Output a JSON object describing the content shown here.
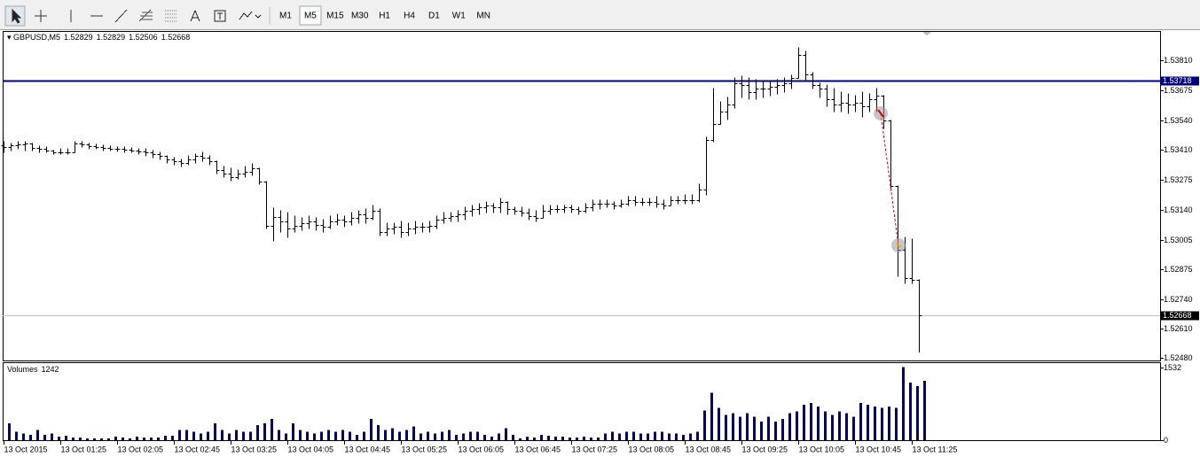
{
  "toolbar": {
    "timeframes": [
      "M1",
      "M5",
      "M15",
      "M30",
      "H1",
      "H4",
      "D1",
      "W1",
      "MN"
    ],
    "active": "M5"
  },
  "chart_data": [
    {
      "type": "ohlc",
      "title": "GBPUSD,M5",
      "color": "#000000",
      "open": [
        1.5343,
        1.53422,
        1.5343,
        1.53434,
        1.53438,
        1.53418,
        1.53414,
        1.53406,
        1.53398,
        1.53398,
        1.53398,
        1.53438,
        1.53434,
        1.53426,
        1.53422,
        1.53418,
        1.53414,
        1.53414,
        1.5341,
        1.53406,
        1.53402,
        1.53398,
        1.5339,
        1.53382,
        1.53367,
        1.53359,
        1.53351,
        1.53367,
        1.53382,
        1.53374,
        1.53359,
        1.53319,
        1.53303,
        1.53287,
        1.53303,
        1.53311,
        1.53327,
        1.53267,
        1.5307,
        1.53109,
        1.53089,
        1.53058,
        1.5307,
        1.53081,
        1.53089,
        1.53073,
        1.53066,
        1.53089,
        1.53097,
        1.53089,
        1.53105,
        1.53121,
        1.53105,
        1.53137,
        1.53042,
        1.53058,
        1.53066,
        1.53042,
        1.53058,
        1.53066,
        1.53066,
        1.5307,
        1.53097,
        1.53105,
        1.53113,
        1.53121,
        1.53137,
        1.53145,
        1.53153,
        1.53161,
        1.53153,
        1.53176,
        1.53145,
        1.53137,
        1.53129,
        1.53113,
        1.53105,
        1.53137,
        1.53145,
        1.53145,
        1.53153,
        1.53145,
        1.53137,
        1.53153,
        1.53168,
        1.53168,
        1.53168,
        1.53161,
        1.53168,
        1.53184,
        1.53176,
        1.53176,
        1.53176,
        1.53168,
        1.53161,
        1.53184,
        1.53184,
        1.53184,
        1.53184,
        1.53232,
        1.53454,
        1.53525,
        1.5358,
        1.53612,
        1.53707,
        1.53699,
        1.53667,
        1.53683,
        1.53683,
        1.53691,
        1.53699,
        1.53707,
        1.53731,
        1.53834,
        1.53747,
        1.53699,
        1.53683,
        1.53636,
        1.53612,
        1.5362,
        1.53612,
        1.5362,
        1.53604,
        1.53636,
        1.53652,
        1.53541,
        1.53248,
        1.52963,
        1.52836,
        1.52829
      ],
      "high": [
        1.53446,
        1.53438,
        1.53446,
        1.53446,
        1.53438,
        1.53426,
        1.53422,
        1.53406,
        1.53414,
        1.53414,
        1.53446,
        1.53446,
        1.53438,
        1.53434,
        1.5343,
        1.53426,
        1.53422,
        1.53422,
        1.53418,
        1.53414,
        1.53414,
        1.53406,
        1.53398,
        1.53382,
        1.53374,
        1.53367,
        1.53382,
        1.5339,
        1.53398,
        1.53382,
        1.53359,
        1.53335,
        1.53327,
        1.53319,
        1.53335,
        1.53347,
        1.53327,
        1.53267,
        1.53149,
        1.53137,
        1.53129,
        1.53113,
        1.53105,
        1.53113,
        1.53105,
        1.53097,
        1.53113,
        1.53121,
        1.53113,
        1.53129,
        1.53137,
        1.53145,
        1.53161,
        1.53145,
        1.53081,
        1.53081,
        1.53089,
        1.53081,
        1.53089,
        1.53081,
        1.53089,
        1.53113,
        1.53129,
        1.53129,
        1.53137,
        1.53153,
        1.53161,
        1.53168,
        1.53176,
        1.53168,
        1.53192,
        1.53176,
        1.53153,
        1.53153,
        1.53145,
        1.53137,
        1.53161,
        1.53161,
        1.53161,
        1.53161,
        1.53161,
        1.53153,
        1.53168,
        1.53184,
        1.53184,
        1.53184,
        1.53176,
        1.53184,
        1.532,
        1.532,
        1.53192,
        1.53192,
        1.532,
        1.53184,
        1.532,
        1.532,
        1.53208,
        1.53208,
        1.53256,
        1.53466,
        1.53683,
        1.53624,
        1.53644,
        1.53731,
        1.53739,
        1.53731,
        1.53723,
        1.53715,
        1.53715,
        1.53723,
        1.53731,
        1.53743,
        1.53865,
        1.5385,
        1.53755,
        1.53707,
        1.53699,
        1.53683,
        1.53667,
        1.5366,
        1.53652,
        1.53667,
        1.5366,
        1.53683,
        1.53652,
        1.53541,
        1.53248,
        1.53018,
        1.5301,
        1.52829
      ],
      "low": [
        1.53398,
        1.53406,
        1.53414,
        1.53406,
        1.53406,
        1.53398,
        1.53398,
        1.5339,
        1.5339,
        1.5339,
        1.53398,
        1.53422,
        1.53414,
        1.53414,
        1.53406,
        1.53406,
        1.53402,
        1.53398,
        1.53398,
        1.5339,
        1.53382,
        1.53374,
        1.53367,
        1.53351,
        1.53343,
        1.53335,
        1.53343,
        1.53351,
        1.53359,
        1.53343,
        1.53303,
        1.53287,
        1.53271,
        1.53279,
        1.53287,
        1.53295,
        1.53256,
        1.53058,
        1.53002,
        1.53042,
        1.53018,
        1.53042,
        1.5305,
        1.53058,
        1.5305,
        1.53042,
        1.53058,
        1.53073,
        1.53066,
        1.53073,
        1.53081,
        1.53081,
        1.53097,
        1.53026,
        1.53026,
        1.53034,
        1.53018,
        1.53026,
        1.53034,
        1.53042,
        1.53042,
        1.53058,
        1.53081,
        1.53089,
        1.53089,
        1.53097,
        1.53113,
        1.53121,
        1.53129,
        1.53129,
        1.53129,
        1.53121,
        1.53121,
        1.53113,
        1.53097,
        1.53089,
        1.53105,
        1.53121,
        1.53129,
        1.53129,
        1.53129,
        1.53121,
        1.53129,
        1.53137,
        1.53145,
        1.53153,
        1.53145,
        1.53153,
        1.53161,
        1.53161,
        1.53161,
        1.53161,
        1.53153,
        1.53145,
        1.53161,
        1.53168,
        1.53168,
        1.53168,
        1.53176,
        1.53208,
        1.53446,
        1.53525,
        1.53545,
        1.53596,
        1.53644,
        1.53636,
        1.53636,
        1.53644,
        1.53652,
        1.5366,
        1.53667,
        1.53683,
        1.53731,
        1.53723,
        1.53683,
        1.53644,
        1.53604,
        1.5358,
        1.5358,
        1.53572,
        1.5358,
        1.53557,
        1.5358,
        1.5358,
        1.53505,
        1.53228,
        1.52844,
        1.52812,
        1.52812,
        1.52506
      ],
      "close": [
        1.53422,
        1.5343,
        1.53434,
        1.53438,
        1.53418,
        1.53414,
        1.53406,
        1.53398,
        1.53398,
        1.53398,
        1.53438,
        1.53434,
        1.53426,
        1.53422,
        1.53418,
        1.53414,
        1.53414,
        1.5341,
        1.53406,
        1.53402,
        1.53398,
        1.5339,
        1.53382,
        1.53367,
        1.53359,
        1.53351,
        1.53367,
        1.53382,
        1.53374,
        1.53359,
        1.53319,
        1.53303,
        1.53287,
        1.53303,
        1.53311,
        1.53327,
        1.53267,
        1.5307,
        1.53109,
        1.53089,
        1.53058,
        1.5307,
        1.53081,
        1.53089,
        1.53073,
        1.53066,
        1.53089,
        1.53097,
        1.53089,
        1.53105,
        1.53121,
        1.53105,
        1.53137,
        1.53042,
        1.53058,
        1.53066,
        1.53042,
        1.53058,
        1.53066,
        1.53066,
        1.5307,
        1.53097,
        1.53105,
        1.53113,
        1.53121,
        1.53137,
        1.53145,
        1.53153,
        1.53161,
        1.53153,
        1.53176,
        1.53145,
        1.53137,
        1.53129,
        1.53113,
        1.53105,
        1.53137,
        1.53145,
        1.53145,
        1.53153,
        1.53145,
        1.53137,
        1.53153,
        1.53168,
        1.53168,
        1.53168,
        1.53161,
        1.53168,
        1.53184,
        1.53176,
        1.53176,
        1.53176,
        1.53168,
        1.53161,
        1.53184,
        1.53184,
        1.53184,
        1.53184,
        1.53232,
        1.53454,
        1.53525,
        1.5358,
        1.53612,
        1.53707,
        1.53699,
        1.53667,
        1.53683,
        1.53683,
        1.53691,
        1.53699,
        1.53707,
        1.53731,
        1.53834,
        1.53747,
        1.53699,
        1.53683,
        1.53636,
        1.53612,
        1.5362,
        1.53612,
        1.5362,
        1.53604,
        1.53636,
        1.53652,
        1.53541,
        1.53248,
        1.52963,
        1.52836,
        1.52829,
        1.52668
      ],
      "xlim": [
        -0.125,
        163
      ],
      "xticks": [
        {
          "value": 0,
          "label": "13 Oct 2015"
        },
        {
          "value": 8,
          "label": "13 Oct 01:25"
        },
        {
          "value": 16,
          "label": "13 Oct 02:05"
        },
        {
          "value": 24,
          "label": "13 Oct 02:45"
        },
        {
          "value": 32,
          "label": "13 Oct 03:25"
        },
        {
          "value": 40,
          "label": "13 Oct 04:05"
        },
        {
          "value": 48,
          "label": "13 Oct 04:45"
        },
        {
          "value": 56,
          "label": "13 Oct 05:25"
        },
        {
          "value": 64,
          "label": "13 Oct 06:05"
        },
        {
          "value": 72,
          "label": "13 Oct 06:45"
        },
        {
          "value": 80,
          "label": "13 Oct 07:25"
        },
        {
          "value": 88,
          "label": "13 Oct 08:05"
        },
        {
          "value": 96,
          "label": "13 Oct 08:45"
        },
        {
          "value": 104,
          "label": "13 Oct 09:25"
        },
        {
          "value": 112,
          "label": "13 Oct 10:05"
        },
        {
          "value": 120,
          "label": "13 Oct 10:45"
        },
        {
          "value": 128,
          "label": "13 Oct 11:25"
        }
      ],
      "ylim": [
        1.52468,
        1.53937
      ],
      "yticks": [
        {
          "value": 1.5381,
          "label": "1.53810"
        },
        1.53675,
        {
          "value": 1.5354,
          "label": "1.53540"
        },
        {
          "value": 1.5341,
          "label": "1.53410"
        },
        1.53275,
        {
          "value": 1.5314,
          "label": "1.53140"
        },
        1.53005,
        1.52875,
        {
          "value": 1.5274,
          "label": "1.52740"
        },
        {
          "value": 1.5261,
          "label": "1.52610"
        },
        {
          "value": 1.5248,
          "label": "1.52480"
        }
      ],
      "hline": {
        "value": 1.53718,
        "color": "#000080"
      },
      "grid": false
    },
    {
      "type": "bar",
      "title": "Volumes",
      "color": "#000080",
      "values": [
        355,
        178,
        142,
        107,
        213,
        107,
        142,
        71,
        89,
        53,
        53,
        36,
        36,
        36,
        36,
        71,
        53,
        36,
        71,
        53,
        53,
        53,
        89,
        89,
        213,
        213,
        178,
        142,
        178,
        355,
        213,
        142,
        213,
        178,
        178,
        320,
        355,
        444,
        213,
        142,
        355,
        213,
        178,
        142,
        178,
        213,
        178,
        213,
        178,
        107,
        178,
        444,
        320,
        213,
        249,
        178,
        213,
        284,
        142,
        178,
        142,
        178,
        213,
        107,
        142,
        178,
        178,
        107,
        71,
        142,
        249,
        107,
        36,
        71,
        53,
        107,
        89,
        71,
        71,
        53,
        53,
        71,
        53,
        53,
        142,
        178,
        142,
        178,
        178,
        142,
        142,
        178,
        178,
        142,
        142,
        107,
        142,
        178,
        621,
        994,
        675,
        533,
        568,
        497,
        568,
        497,
        391,
        497,
        391,
        444,
        568,
        604,
        746,
        781,
        710,
        604,
        533,
        604,
        568,
        497,
        781,
        746,
        710,
        675,
        710,
        675,
        1532,
        1207,
        1136,
        1242
      ],
      "ylim": [
        0,
        1580
      ],
      "yticks": [
        0,
        1532
      ]
    }
  ]
}
